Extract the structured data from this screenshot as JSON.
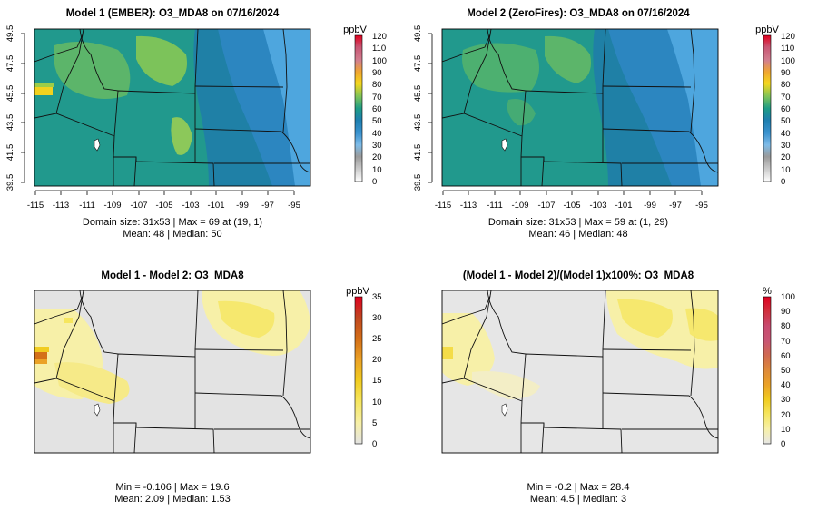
{
  "chart_data": [
    {
      "type": "heatmap",
      "title": "Model 1 (EMBER): O3_MDA8 on 07/16/2024",
      "x_ticks": [
        "-115",
        "-113",
        "-111",
        "-109",
        "-107",
        "-105",
        "-103",
        "-101",
        "-99",
        "-97",
        "-95"
      ],
      "y_ticks": [
        "39.5",
        "41.5",
        "43.5",
        "45.5",
        "47.5",
        "49.5"
      ],
      "xlim": [
        -115.3,
        -94.7
      ],
      "ylim": [
        39.4,
        49.9
      ],
      "legend_unit": "ppbV",
      "legend_ticks": [
        "0",
        "10",
        "20",
        "30",
        "40",
        "50",
        "60",
        "70",
        "80",
        "90",
        "100",
        "110",
        "120"
      ],
      "legend_range": [
        0,
        120
      ],
      "stats_line1": "Domain size: 31x53 | Max = 69 at (19, 1)",
      "stats_line2": "Mean: 48 |  Median: 50",
      "field": {
        "domain_size": [
          31,
          53
        ],
        "max": 69,
        "max_at": [
          19,
          1
        ],
        "mean": 48,
        "median": 50
      }
    },
    {
      "type": "heatmap",
      "title": "Model 2 (ZeroFires): O3_MDA8 on 07/16/2024",
      "x_ticks": [
        "-115",
        "-113",
        "-111",
        "-109",
        "-107",
        "-105",
        "-103",
        "-101",
        "-99",
        "-97",
        "-95"
      ],
      "y_ticks": [
        "39.5",
        "41.5",
        "43.5",
        "45.5",
        "47.5",
        "49.5"
      ],
      "xlim": [
        -115.3,
        -94.7
      ],
      "ylim": [
        39.4,
        49.9
      ],
      "legend_unit": "ppbV",
      "legend_ticks": [
        "0",
        "10",
        "20",
        "30",
        "40",
        "50",
        "60",
        "70",
        "80",
        "90",
        "100",
        "110",
        "120"
      ],
      "legend_range": [
        0,
        120
      ],
      "stats_line1": "Domain size: 31x53 | Max = 59 at (1, 29)",
      "stats_line2": "Mean: 46 |  Median: 48",
      "field": {
        "domain_size": [
          31,
          53
        ],
        "max": 59,
        "max_at": [
          1,
          29
        ],
        "mean": 46,
        "median": 48
      }
    },
    {
      "type": "heatmap",
      "title": "Model 1 - Model 2: O3_MDA8",
      "legend_unit": "ppbV",
      "legend_ticks": [
        "0",
        "5",
        "10",
        "15",
        "20",
        "25",
        "30",
        "35"
      ],
      "legend_range": [
        0,
        35
      ],
      "stats_line1": "Min = -0.106 | Max = 19.6",
      "stats_line2": "Mean: 2.09 |  Median: 1.53",
      "field": {
        "min": -0.106,
        "max": 19.6,
        "mean": 2.09,
        "median": 1.53
      }
    },
    {
      "type": "heatmap",
      "title": "(Model 1 - Model 2)/(Model 1)x100%: O3_MDA8",
      "legend_unit": "%",
      "legend_ticks": [
        "0",
        "10",
        "20",
        "30",
        "40",
        "50",
        "60",
        "70",
        "80",
        "90",
        "100"
      ],
      "legend_range": [
        0,
        100
      ],
      "stats_line1": "Min = -0.2 | Max = 28.4",
      "stats_line2": "Mean: 4.5 |  Median: 3",
      "field": {
        "min": -0.2,
        "max": 28.4,
        "mean": 4.5,
        "median": 3
      }
    }
  ],
  "colors": {
    "diverging_scale": [
      "#d5d5d5",
      "#a8a8a8",
      "#5aa8e0",
      "#2c86c0",
      "#1f7fa8",
      "#229e8a",
      "#4fb86a",
      "#c8d050",
      "#f4d71e",
      "#f2a02a",
      "#d77a8c",
      "#c0566e",
      "#e0001e"
    ],
    "difference_scale": [
      "#e3e3e3",
      "#f7f0a8",
      "#f6e65e",
      "#f1cc20",
      "#eba226",
      "#d47018",
      "#c04620",
      "#e00020"
    ],
    "border": "#111111"
  }
}
